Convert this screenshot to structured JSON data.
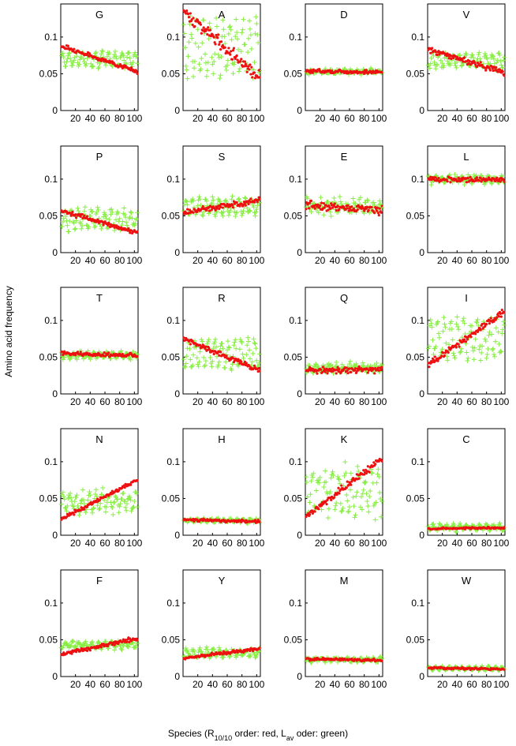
{
  "figure": {
    "ylabel": "Amino acid frequency",
    "xlabel": {
      "prefix": "Species (R",
      "sub1": "10/10",
      "mid": " order: red, L",
      "sub2": "av",
      "suffix": " oder: green)"
    },
    "colors": {
      "red": "#ee1111",
      "green": "#88ee44"
    }
  },
  "chart_data": [
    {
      "type": "scatter",
      "title": "G",
      "xlim": [
        0,
        105
      ],
      "ylim": [
        0,
        0.145
      ],
      "xticks": [
        "20",
        "40",
        "60",
        "80",
        "100"
      ],
      "yticks": [
        "0",
        "0.05",
        "0.1"
      ],
      "red": {
        "start": 0.088,
        "end": 0.053,
        "jitter": 0.004
      },
      "green": {
        "base": 0.07,
        "amp": 0.009,
        "jitter": 0.006
      }
    },
    {
      "type": "scatter",
      "title": "A",
      "xlim": [
        0,
        105
      ],
      "ylim": [
        0,
        0.145
      ],
      "xticks": [
        "20",
        "40",
        "60",
        "80",
        "100"
      ],
      "yticks": [
        "0",
        "0.05",
        "0.1"
      ],
      "red": {
        "start": 0.135,
        "end": 0.045,
        "jitter": 0.012
      },
      "green": {
        "base": 0.085,
        "amp": 0.035,
        "jitter": 0.018
      }
    },
    {
      "type": "scatter",
      "title": "D",
      "xlim": [
        0,
        105
      ],
      "ylim": [
        0,
        0.145
      ],
      "xticks": [
        "20",
        "40",
        "60",
        "80",
        "100"
      ],
      "yticks": [
        "0",
        "0.05",
        "0.1"
      ],
      "red": {
        "start": 0.054,
        "end": 0.052,
        "jitter": 0.004
      },
      "green": {
        "base": 0.053,
        "amp": 0.002,
        "jitter": 0.004
      }
    },
    {
      "type": "scatter",
      "title": "V",
      "xlim": [
        0,
        105
      ],
      "ylim": [
        0,
        0.145
      ],
      "xticks": [
        "20",
        "40",
        "60",
        "80",
        "100"
      ],
      "yticks": [
        "0",
        "0.05",
        "0.1"
      ],
      "red": {
        "start": 0.083,
        "end": 0.052,
        "jitter": 0.006
      },
      "green": {
        "base": 0.068,
        "amp": 0.008,
        "jitter": 0.007
      }
    },
    {
      "type": "scatter",
      "title": "P",
      "xlim": [
        0,
        105
      ],
      "ylim": [
        0,
        0.145
      ],
      "xticks": [
        "20",
        "40",
        "60",
        "80",
        "100"
      ],
      "yticks": [
        "0",
        "0.05",
        "0.1"
      ],
      "red": {
        "start": 0.057,
        "end": 0.027,
        "jitter": 0.004
      },
      "green": {
        "base": 0.045,
        "amp": 0.012,
        "jitter": 0.01
      }
    },
    {
      "type": "scatter",
      "title": "S",
      "xlim": [
        0,
        105
      ],
      "ylim": [
        0,
        0.145
      ],
      "xticks": [
        "20",
        "40",
        "60",
        "80",
        "100"
      ],
      "yticks": [
        "0",
        "0.05",
        "0.1"
      ],
      "red": {
        "start": 0.054,
        "end": 0.072,
        "jitter": 0.006
      },
      "green": {
        "base": 0.062,
        "amp": 0.01,
        "jitter": 0.006
      }
    },
    {
      "type": "scatter",
      "title": "E",
      "xlim": [
        0,
        105
      ],
      "ylim": [
        0,
        0.145
      ],
      "xticks": [
        "20",
        "40",
        "60",
        "80",
        "100"
      ],
      "yticks": [
        "0",
        "0.05",
        "0.1"
      ],
      "red": {
        "start": 0.065,
        "end": 0.058,
        "jitter": 0.01
      },
      "green": {
        "base": 0.063,
        "amp": 0.006,
        "jitter": 0.012
      }
    },
    {
      "type": "scatter",
      "title": "L",
      "xlim": [
        0,
        105
      ],
      "ylim": [
        0,
        0.145
      ],
      "xticks": [
        "20",
        "40",
        "60",
        "80",
        "100"
      ],
      "yticks": [
        "0",
        "0.05",
        "0.1"
      ],
      "red": {
        "start": 0.1,
        "end": 0.099,
        "jitter": 0.005
      },
      "green": {
        "base": 0.1,
        "amp": 0.004,
        "jitter": 0.006
      }
    },
    {
      "type": "scatter",
      "title": "T",
      "xlim": [
        0,
        105
      ],
      "ylim": [
        0,
        0.145
      ],
      "xticks": [
        "20",
        "40",
        "60",
        "80",
        "100"
      ],
      "yticks": [
        "0",
        "0.05",
        "0.1"
      ],
      "red": {
        "start": 0.055,
        "end": 0.052,
        "jitter": 0.004
      },
      "green": {
        "base": 0.053,
        "amp": 0.003,
        "jitter": 0.006
      }
    },
    {
      "type": "scatter",
      "title": "R",
      "xlim": [
        0,
        105
      ],
      "ylim": [
        0,
        0.145
      ],
      "xticks": [
        "20",
        "40",
        "60",
        "80",
        "100"
      ],
      "yticks": [
        "0",
        "0.05",
        "0.1"
      ],
      "red": {
        "start": 0.075,
        "end": 0.032,
        "jitter": 0.005
      },
      "green": {
        "base": 0.055,
        "amp": 0.018,
        "jitter": 0.009
      }
    },
    {
      "type": "scatter",
      "title": "Q",
      "xlim": [
        0,
        105
      ],
      "ylim": [
        0,
        0.145
      ],
      "xticks": [
        "20",
        "40",
        "60",
        "80",
        "100"
      ],
      "yticks": [
        "0",
        "0.05",
        "0.1"
      ],
      "red": {
        "start": 0.032,
        "end": 0.033,
        "jitter": 0.006
      },
      "green": {
        "base": 0.035,
        "amp": 0.004,
        "jitter": 0.008
      }
    },
    {
      "type": "scatter",
      "title": "I",
      "xlim": [
        0,
        105
      ],
      "ylim": [
        0,
        0.145
      ],
      "xticks": [
        "20",
        "40",
        "60",
        "80",
        "100"
      ],
      "yticks": [
        "0",
        "0.05",
        "0.1"
      ],
      "red": {
        "start": 0.04,
        "end": 0.112,
        "jitter": 0.007
      },
      "green": {
        "base": 0.075,
        "amp": 0.025,
        "jitter": 0.015
      }
    },
    {
      "type": "scatter",
      "title": "N",
      "xlim": [
        0,
        105
      ],
      "ylim": [
        0,
        0.145
      ],
      "xticks": [
        "20",
        "40",
        "60",
        "80",
        "100"
      ],
      "yticks": [
        "0",
        "0.05",
        "0.1"
      ],
      "red": {
        "start": 0.022,
        "end": 0.075,
        "jitter": 0.004
      },
      "green": {
        "base": 0.045,
        "amp": 0.012,
        "jitter": 0.012
      }
    },
    {
      "type": "scatter",
      "title": "H",
      "xlim": [
        0,
        105
      ],
      "ylim": [
        0,
        0.145
      ],
      "xticks": [
        "20",
        "40",
        "60",
        "80",
        "100"
      ],
      "yticks": [
        "0",
        "0.05",
        "0.1"
      ],
      "red": {
        "start": 0.021,
        "end": 0.019,
        "jitter": 0.003
      },
      "green": {
        "base": 0.02,
        "amp": 0.002,
        "jitter": 0.003
      }
    },
    {
      "type": "scatter",
      "title": "K",
      "xlim": [
        0,
        105
      ],
      "ylim": [
        0,
        0.145
      ],
      "xticks": [
        "20",
        "40",
        "60",
        "80",
        "100"
      ],
      "yticks": [
        "0",
        "0.05",
        "0.1"
      ],
      "red": {
        "start": 0.025,
        "end": 0.105,
        "jitter": 0.007
      },
      "green": {
        "base": 0.06,
        "amp": 0.025,
        "jitter": 0.02
      }
    },
    {
      "type": "scatter",
      "title": "C",
      "xlim": [
        0,
        105
      ],
      "ylim": [
        0,
        0.145
      ],
      "xticks": [
        "20",
        "40",
        "60",
        "80",
        "100"
      ],
      "yticks": [
        "0",
        "0.05",
        "0.1"
      ],
      "red": {
        "start": 0.009,
        "end": 0.01,
        "jitter": 0.002
      },
      "green": {
        "base": 0.011,
        "amp": 0.003,
        "jitter": 0.004
      }
    },
    {
      "type": "scatter",
      "title": "F",
      "xlim": [
        0,
        105
      ],
      "ylim": [
        0,
        0.145
      ],
      "xticks": [
        "20",
        "40",
        "60",
        "80",
        "100"
      ],
      "yticks": [
        "0",
        "0.05",
        "0.1"
      ],
      "red": {
        "start": 0.03,
        "end": 0.052,
        "jitter": 0.004
      },
      "green": {
        "base": 0.043,
        "amp": 0.004,
        "jitter": 0.005
      }
    },
    {
      "type": "scatter",
      "title": "Y",
      "xlim": [
        0,
        105
      ],
      "ylim": [
        0,
        0.145
      ],
      "xticks": [
        "20",
        "40",
        "60",
        "80",
        "100"
      ],
      "yticks": [
        "0",
        "0.05",
        "0.1"
      ],
      "red": {
        "start": 0.025,
        "end": 0.038,
        "jitter": 0.003
      },
      "green": {
        "base": 0.032,
        "amp": 0.005,
        "jitter": 0.005
      }
    },
    {
      "type": "scatter",
      "title": "M",
      "xlim": [
        0,
        105
      ],
      "ylim": [
        0,
        0.145
      ],
      "xticks": [
        "20",
        "40",
        "60",
        "80",
        "100"
      ],
      "yticks": [
        "0",
        "0.05",
        "0.1"
      ],
      "red": {
        "start": 0.024,
        "end": 0.022,
        "jitter": 0.003
      },
      "green": {
        "base": 0.023,
        "amp": 0.002,
        "jitter": 0.004
      }
    },
    {
      "type": "scatter",
      "title": "W",
      "xlim": [
        0,
        105
      ],
      "ylim": [
        0,
        0.145
      ],
      "xticks": [
        "20",
        "40",
        "60",
        "80",
        "100"
      ],
      "yticks": [
        "0",
        "0.05",
        "0.1"
      ],
      "red": {
        "start": 0.012,
        "end": 0.01,
        "jitter": 0.002
      },
      "green": {
        "base": 0.011,
        "amp": 0.002,
        "jitter": 0.002
      }
    }
  ]
}
